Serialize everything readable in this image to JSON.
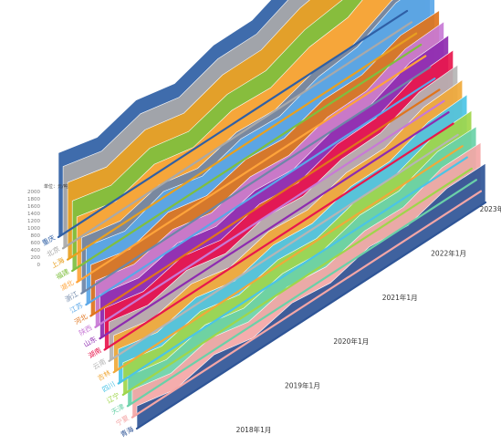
{
  "chart_data": {
    "type": "area",
    "chart_style": "3d-ridgeline",
    "title": "",
    "xlabel": "",
    "ylabel": "",
    "legend_text": "单位：元/吨",
    "y_ticks": [
      "2000",
      "1800",
      "1600",
      "1400",
      "1200",
      "1000",
      "800",
      "600",
      "400",
      "200",
      "0"
    ],
    "x_ticks": [
      "2018年1月",
      "2019年1月",
      "2020年1月",
      "2021年1月",
      "2022年1月",
      "2023年1月"
    ],
    "x_range": [
      "2018年1月",
      "2023年1月"
    ],
    "ylim": [
      0,
      2000
    ],
    "series": [
      {
        "name": "青海",
        "color": "#2f5597",
        "values": [
          160,
          150,
          170,
          160,
          180,
          200,
          230,
          260,
          300,
          360
        ]
      },
      {
        "name": "宁夏",
        "color": "#f4a6a6",
        "values": [
          200,
          190,
          210,
          200,
          220,
          240,
          270,
          320,
          380,
          440
        ]
      },
      {
        "name": "天津",
        "color": "#6ad1a8",
        "values": [
          220,
          210,
          230,
          220,
          240,
          270,
          310,
          360,
          420,
          480
        ]
      },
      {
        "name": "辽宁",
        "color": "#9fd64a",
        "values": [
          240,
          230,
          250,
          240,
          260,
          290,
          330,
          390,
          450,
          520
        ]
      },
      {
        "name": "四川",
        "color": "#4bc4e6",
        "values": [
          260,
          250,
          270,
          260,
          290,
          320,
          360,
          420,
          480,
          560
        ]
      },
      {
        "name": "吉林",
        "color": "#f0a93a",
        "values": [
          280,
          270,
          290,
          280,
          310,
          340,
          380,
          440,
          510,
          590
        ]
      },
      {
        "name": "云南",
        "color": "#b5b5b5",
        "values": [
          300,
          290,
          310,
          300,
          330,
          360,
          400,
          470,
          540,
          620
        ]
      },
      {
        "name": "湖南",
        "color": "#e8174d",
        "values": [
          320,
          310,
          330,
          320,
          350,
          380,
          430,
          500,
          570,
          650
        ]
      },
      {
        "name": "山东",
        "color": "#8e2bb0",
        "values": [
          340,
          330,
          350,
          340,
          370,
          400,
          450,
          520,
          600,
          680
        ]
      },
      {
        "name": "陕西",
        "color": "#c879d6",
        "values": [
          360,
          350,
          370,
          360,
          390,
          420,
          470,
          540,
          620,
          700
        ]
      },
      {
        "name": "河北",
        "color": "#e0741c",
        "values": [
          400,
          380,
          420,
          410,
          440,
          470,
          520,
          580,
          640,
          700
        ]
      },
      {
        "name": "江苏",
        "color": "#5aa7e8",
        "values": [
          460,
          440,
          500,
          480,
          520,
          560,
          620,
          720,
          820,
          900
        ]
      },
      {
        "name": "浙江",
        "color": "#6e86a8",
        "values": [
          440,
          430,
          460,
          450,
          480,
          520,
          570,
          640,
          740,
          860
        ]
      },
      {
        "name": "湖北",
        "color": "#ffa43a",
        "values": [
          520,
          500,
          540,
          530,
          570,
          610,
          680,
          780,
          900,
          1000
        ]
      },
      {
        "name": "福建",
        "color": "#7fbf3f",
        "values": [
          560,
          540,
          580,
          570,
          610,
          660,
          730,
          840,
          960,
          1060
        ]
      },
      {
        "name": "上海",
        "color": "#e8a020",
        "values": [
          620,
          600,
          640,
          630,
          680,
          740,
          820,
          940,
          1080,
          1180
        ]
      },
      {
        "name": "北京",
        "color": "#a9a9a9",
        "values": [
          660,
          640,
          680,
          670,
          720,
          780,
          860,
          980,
          1130,
          1240
        ]
      },
      {
        "name": "重庆",
        "color": "#2f5fa5",
        "values": [
          680,
          660,
          700,
          690,
          740,
          800,
          880,
          1000,
          1160,
          1280
        ]
      }
    ],
    "category_labels": [
      "重庆",
      "北京",
      "上海",
      "福建",
      "湖北",
      "浙江",
      "江苏",
      "河北",
      "陕西",
      "山东",
      "湖南",
      "云南",
      "吉林",
      "四川",
      "辽宁",
      "天津",
      "宁夏",
      "青海"
    ]
  }
}
